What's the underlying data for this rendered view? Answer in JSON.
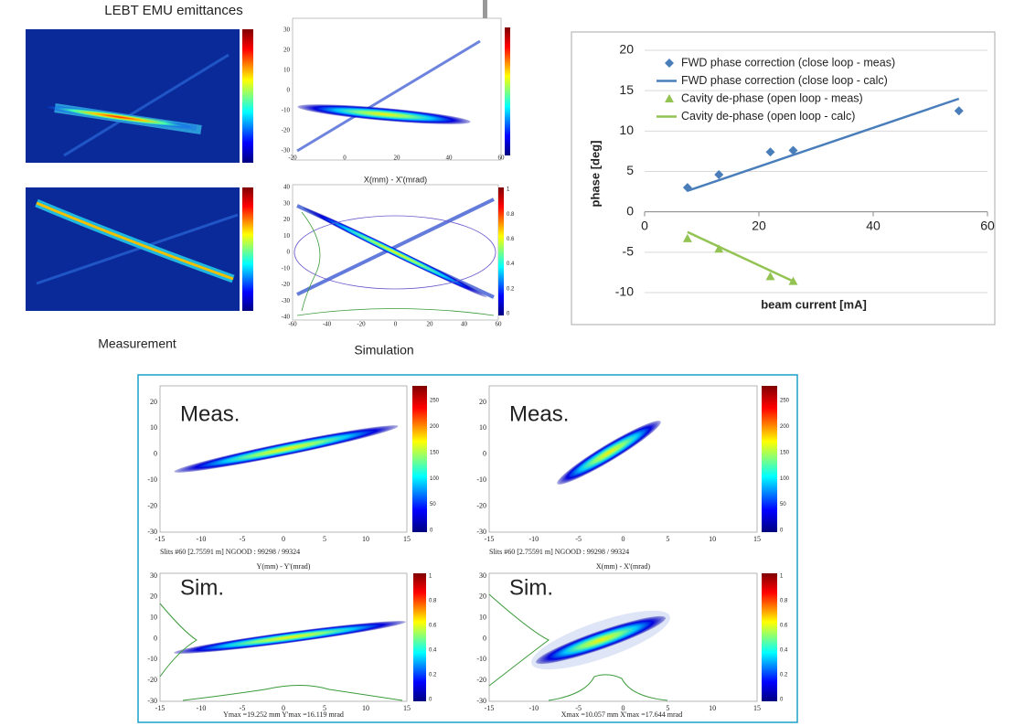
{
  "title": "LEBT EMU emittances",
  "captions": [
    "Measurement",
    "Simulation"
  ],
  "chart_data": {
    "type": "line",
    "series": [
      {
        "name": "FWD phase correction (close loop - meas)",
        "color": "#4a7ebb",
        "mode": "markers",
        "marker": "diamond",
        "x": [
          7.5,
          13,
          22,
          26,
          55
        ],
        "values": [
          3,
          4.6,
          7.4,
          7.6,
          12.5
        ]
      },
      {
        "name": "FWD phase correction (close loop - calc)",
        "color": "#4a7ebb",
        "mode": "line",
        "x": [
          7.5,
          55
        ],
        "values": [
          2.6,
          14
        ]
      },
      {
        "name": "Cavity de-phase (open loop - meas)",
        "color": "#92c353",
        "mode": "markers",
        "marker": "triangle",
        "x": [
          7.5,
          13,
          22,
          26
        ],
        "values": [
          -3.3,
          -4.6,
          -8,
          -8.6
        ]
      },
      {
        "name": "Cavity de-phase (open loop - calc)",
        "color": "#92c353",
        "mode": "line",
        "x": [
          7.5,
          26
        ],
        "values": [
          -2.5,
          -8.6
        ]
      }
    ],
    "xlabel": "beam current [mA]",
    "ylabel": "phase [deg]",
    "xlim": [
      0,
      60
    ],
    "xticks": [
      0,
      20,
      40,
      60
    ],
    "ylim": [
      -10,
      20
    ],
    "yticks": [
      -10,
      -5,
      0,
      5,
      10,
      15,
      20
    ],
    "grid": true,
    "legend": "top-left"
  },
  "top_panels": [
    {
      "yticks": [
        30,
        20,
        10,
        0,
        -10,
        -20,
        -30
      ],
      "xticks": [
        -20,
        0,
        20,
        40,
        60
      ]
    },
    {
      "title": "X(mm) - X'(mrad)",
      "yticks": [
        40,
        30,
        20,
        10,
        0,
        -10,
        -20,
        -30,
        -40
      ],
      "xticks": [
        -60,
        -40,
        -20,
        0,
        20,
        40,
        60
      ],
      "cbar_ticks": [
        1,
        0.8,
        0.6,
        0.4,
        0.2,
        0
      ]
    }
  ],
  "bottom_panels": [
    {
      "label": "Meas.",
      "yticks": [
        20,
        10,
        0,
        -10,
        -20,
        -30
      ],
      "xticks": [
        -15,
        -10,
        -5,
        0,
        5,
        10,
        15
      ],
      "cbar_ticks": [
        250,
        200,
        150,
        100,
        50,
        0
      ],
      "footer": [
        "Slits #60 [2.75591 m]   NGOOD : 99298 / 99324",
        "Y(mm) - Y'(mrad)"
      ]
    },
    {
      "label": "Meas.",
      "yticks": [
        20,
        10,
        0,
        -10,
        -20,
        -30
      ],
      "xticks": [
        -15,
        -10,
        -5,
        0,
        5,
        10,
        15
      ],
      "cbar_ticks": [
        250,
        200,
        150,
        100,
        50,
        0
      ],
      "footer": [
        "Slits #60 [2.75591 m]   NGOOD : 99298 / 99324",
        "X(mm) - X'(mrad)"
      ]
    },
    {
      "label": "Sim.",
      "yticks": [
        30,
        20,
        10,
        0,
        -10,
        -20,
        -30
      ],
      "xticks": [
        -15,
        -10,
        -5,
        0,
        5,
        10,
        15
      ],
      "cbar_ticks": [
        1,
        0.8,
        0.6,
        0.4,
        0.2,
        0
      ],
      "footer": [
        "Ymax =19.252 mm  Y'max =16.119 mrad"
      ]
    },
    {
      "label": "Sim.",
      "yticks": [
        30,
        20,
        10,
        0,
        -10,
        -20,
        -30
      ],
      "xticks": [
        -15,
        -10,
        -5,
        0,
        5,
        10,
        15
      ],
      "cbar_ticks": [
        1,
        0.8,
        0.6,
        0.4,
        0.2,
        0
      ],
      "footer": [
        "Xmax =10.057 mm  X'max =17.644 mrad"
      ]
    }
  ]
}
